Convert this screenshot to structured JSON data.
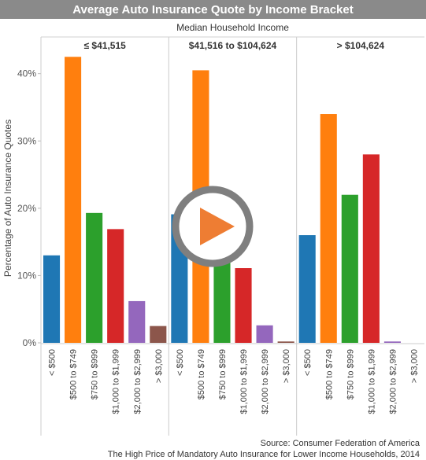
{
  "title": "Average Auto Insurance Quote by Income Bracket",
  "source_lines": [
    "Source: Consumer Federation of America",
    "The High Price of Mandatory Auto Insurance for Lower Income Households, 2014"
  ],
  "colors": {
    "title_bg": "#8a8a8a",
    "play_ring": "#7f7f7f",
    "play_triangle": "#ee7d33"
  },
  "chart_data": {
    "type": "bar",
    "header": "Median Household Income",
    "ylabel": "Percentage of Auto Insurance Quotes",
    "ylim": [
      0,
      0.43
    ],
    "yticks": [
      0,
      0.1,
      0.2,
      0.3,
      0.4
    ],
    "ytick_labels": [
      "0%",
      "10%",
      "20%",
      "30%",
      "40%"
    ],
    "categories": [
      "< $500",
      "$500 to $749",
      "$750 to $999",
      "$1,000 to $1,999",
      "$2,000 to $2,999",
      "> $3,000"
    ],
    "category_colors": [
      "#1f77b4",
      "#ff7f0e",
      "#2ca02c",
      "#d62728",
      "#9467bd",
      "#8c564b"
    ],
    "panels": [
      {
        "label": "≤ $41,515",
        "values": [
          0.13,
          0.425,
          0.193,
          0.169,
          0.062,
          0.025
        ]
      },
      {
        "label": "$41,516 to $104,624",
        "values": [
          0.191,
          0.405,
          0.191,
          0.111,
          0.026,
          0.002
        ]
      },
      {
        "label": "> $104,624",
        "values": [
          0.16,
          0.34,
          0.22,
          0.28,
          0.002,
          0.0
        ]
      }
    ]
  }
}
